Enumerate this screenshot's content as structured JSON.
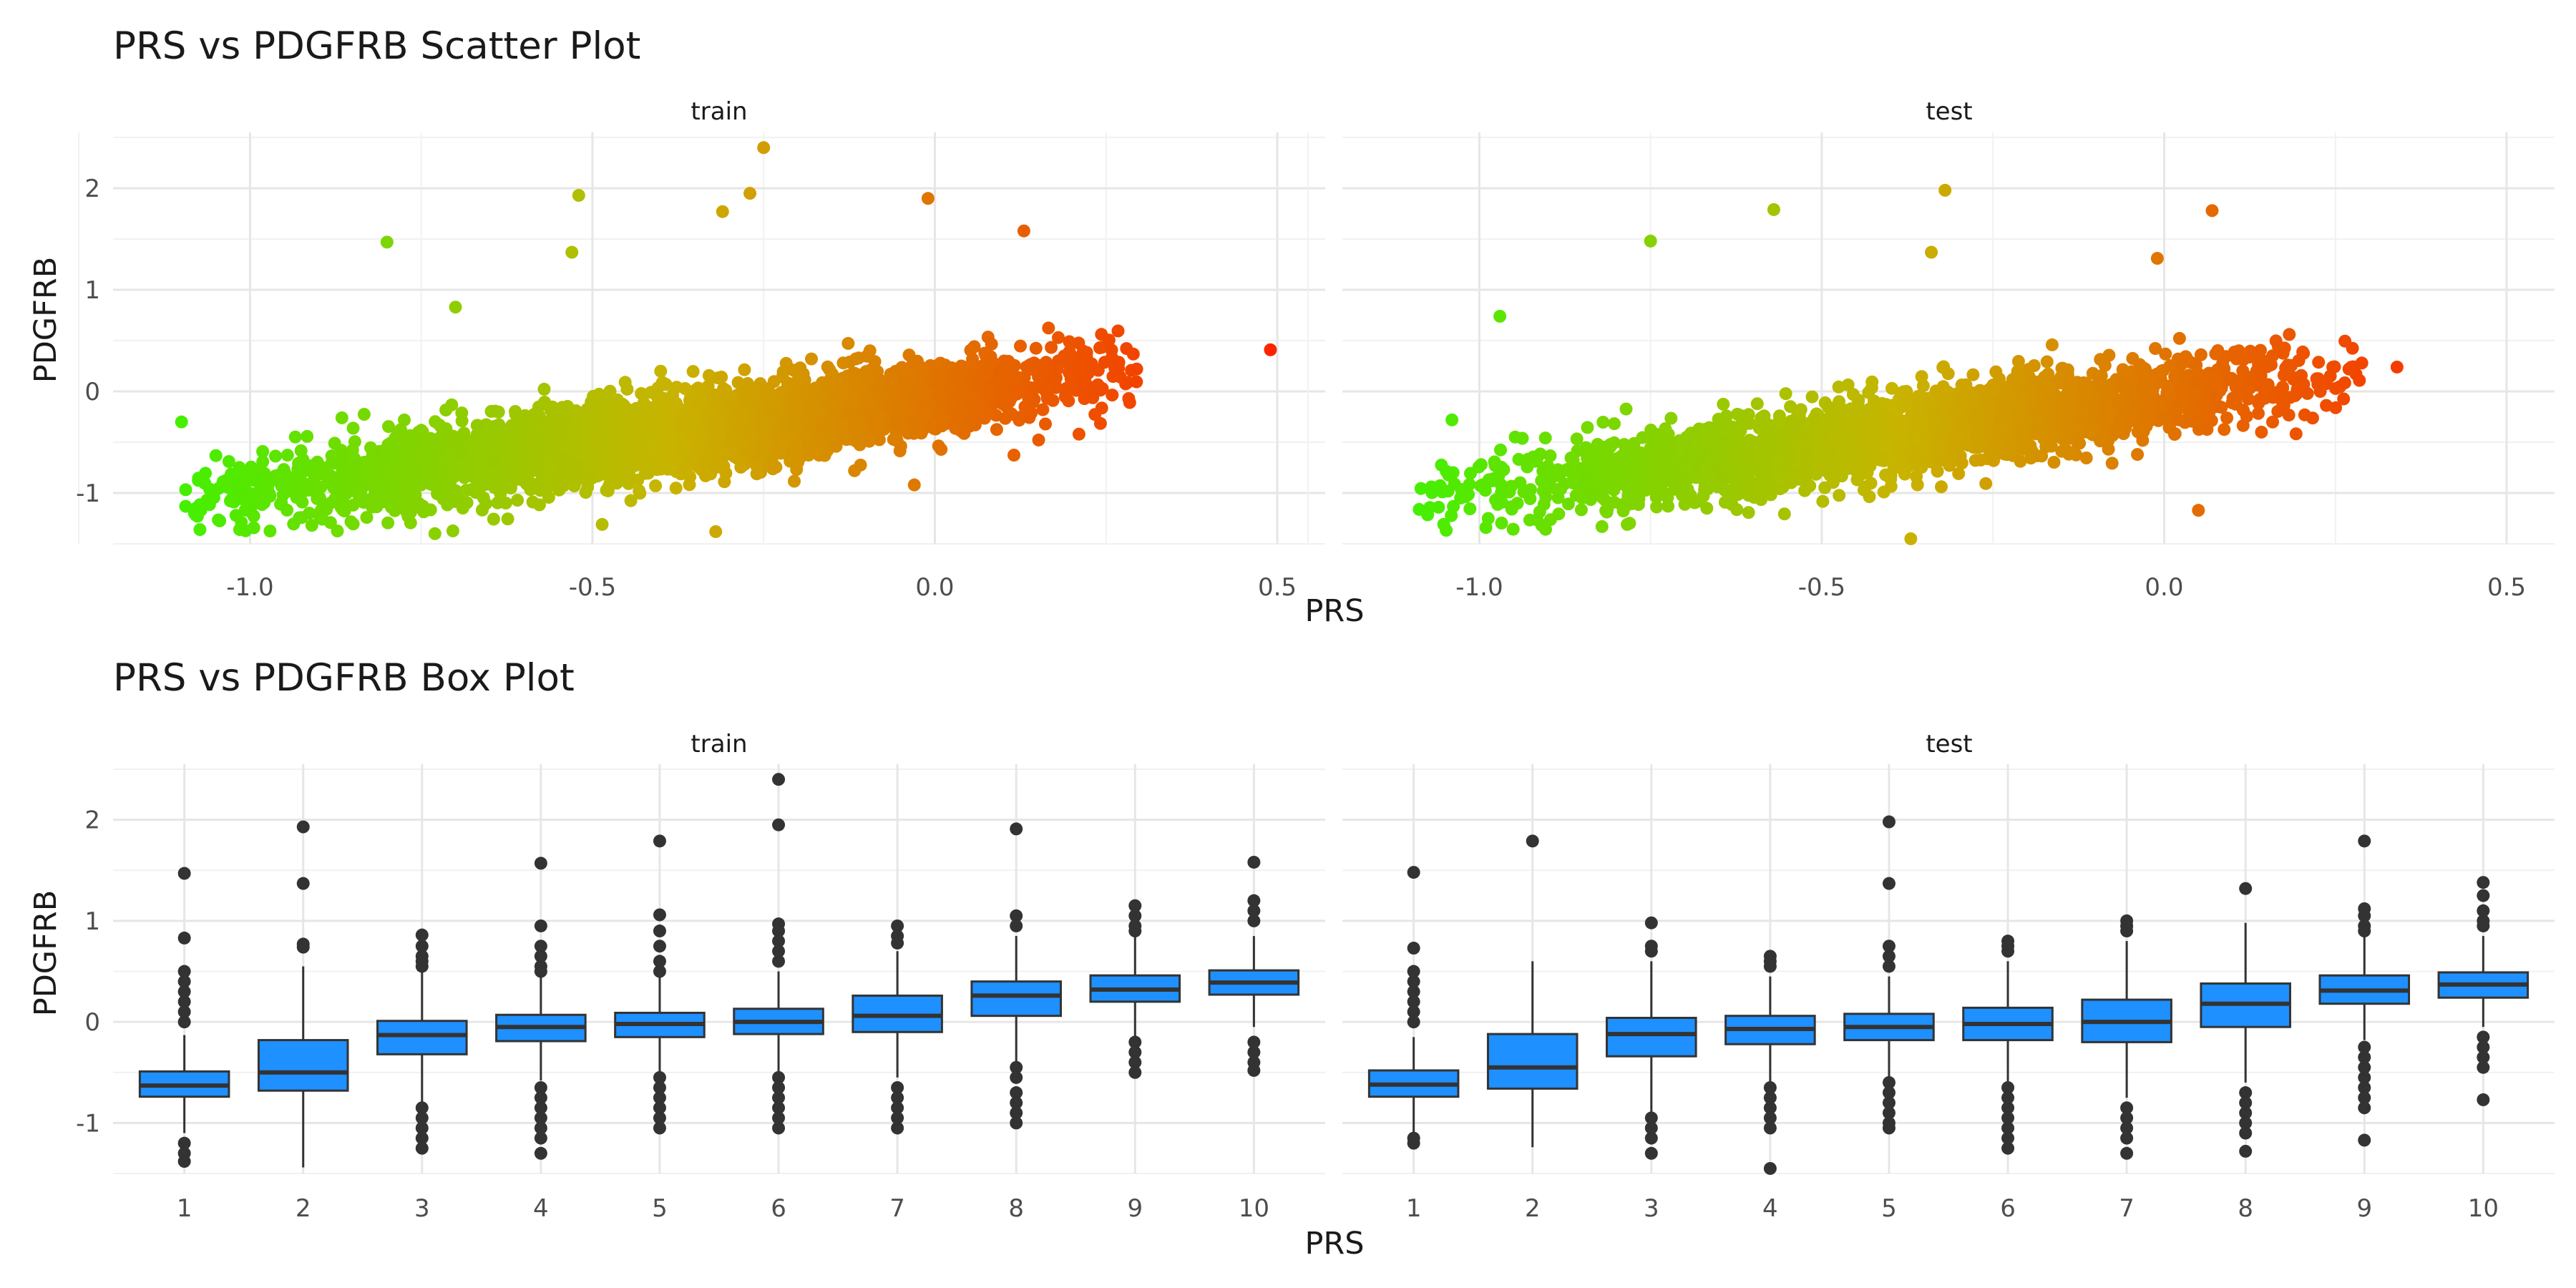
{
  "chart_data": [
    {
      "type": "scatter",
      "title": "PRS vs PDGFRB Scatter Plot",
      "xlabel": "PRS",
      "ylabel": "PDGFRB",
      "facets": [
        "train",
        "test"
      ],
      "xlim": [
        -1.2,
        0.57
      ],
      "ylim": [
        -1.5,
        2.55
      ],
      "xticks": [
        "-1.0",
        "-0.5",
        "0.0",
        "0.5"
      ],
      "yticks": [
        "-1",
        "0",
        "1",
        "2"
      ],
      "color_scale": {
        "low": "#22ff00",
        "mid": "#c8b400",
        "high": "#ff2200",
        "variable": "PRS"
      },
      "grid": true,
      "trend": {
        "slope": 0.93,
        "intercept": -0.05
      },
      "notable_points": {
        "train": [
          {
            "x": -0.25,
            "y": 2.4
          },
          {
            "x": -0.52,
            "y": 1.93
          },
          {
            "x": -0.27,
            "y": 1.95
          },
          {
            "x": -0.31,
            "y": 1.77
          },
          {
            "x": -0.53,
            "y": 1.37
          },
          {
            "x": -0.8,
            "y": 1.47
          },
          {
            "x": -0.01,
            "y": 1.9
          },
          {
            "x": 0.13,
            "y": 1.58
          },
          {
            "x": 0.49,
            "y": 0.41
          },
          {
            "x": -0.7,
            "y": 0.83
          },
          {
            "x": -1.1,
            "y": -0.3
          },
          {
            "x": -0.73,
            "y": -1.4
          },
          {
            "x": -0.32,
            "y": -1.38
          },
          {
            "x": -0.03,
            "y": -0.92
          }
        ],
        "test": [
          {
            "x": -0.32,
            "y": 1.98
          },
          {
            "x": -0.34,
            "y": 1.37
          },
          {
            "x": -0.57,
            "y": 1.79
          },
          {
            "x": -0.75,
            "y": 1.48
          },
          {
            "x": -0.97,
            "y": 0.74
          },
          {
            "x": 0.07,
            "y": 1.78
          },
          {
            "x": -0.01,
            "y": 1.31
          },
          {
            "x": 0.34,
            "y": 0.24
          },
          {
            "x": -1.07,
            "y": -0.94
          },
          {
            "x": -1.04,
            "y": -0.28
          },
          {
            "x": -0.37,
            "y": -1.45
          },
          {
            "x": 0.05,
            "y": -1.17
          }
        ]
      }
    },
    {
      "type": "box",
      "title": "PRS vs PDGFRB Box Plot",
      "xlabel": "PRS",
      "ylabel": "PDGFRB",
      "facets": [
        "train",
        "test"
      ],
      "categories": [
        "1",
        "2",
        "3",
        "4",
        "5",
        "6",
        "7",
        "8",
        "9",
        "10"
      ],
      "yticks": [
        "-1",
        "0",
        "1",
        "2"
      ],
      "ylim": [
        -1.5,
        2.55
      ],
      "box_color": "#1e90ff",
      "panels": [
        {
          "name": "train",
          "boxes": [
            {
              "q1": -0.74,
              "median": -0.63,
              "q3": -0.49,
              "wl": -1.1,
              "wh": -0.13,
              "outliers": [
                1.47,
                0.83,
                0.5,
                0.4,
                0.3,
                0.2,
                0.1,
                0.0,
                -1.2,
                -1.3,
                -1.38
              ]
            },
            {
              "q1": -0.68,
              "median": -0.5,
              "q3": -0.18,
              "wl": -1.44,
              "wh": 0.55,
              "outliers": [
                1.93,
                1.37,
                0.77,
                0.74
              ]
            },
            {
              "q1": -0.32,
              "median": -0.13,
              "q3": 0.01,
              "wl": -0.8,
              "wh": 0.5,
              "outliers": [
                0.86,
                0.75,
                0.65,
                0.6,
                0.55,
                -0.85,
                -0.95,
                -1.05,
                -1.15,
                -1.25
              ]
            },
            {
              "q1": -0.19,
              "median": -0.05,
              "q3": 0.07,
              "wl": -0.58,
              "wh": 0.45,
              "outliers": [
                1.57,
                0.95,
                0.75,
                0.65,
                0.55,
                0.5,
                -0.65,
                -0.75,
                -0.85,
                -0.95,
                -1.05,
                -1.15,
                -1.3
              ]
            },
            {
              "q1": -0.15,
              "median": -0.02,
              "q3": 0.09,
              "wl": -0.5,
              "wh": 0.45,
              "outliers": [
                1.79,
                1.06,
                0.9,
                0.75,
                0.6,
                0.5,
                -0.55,
                -0.65,
                -0.75,
                -0.85,
                -0.95,
                -1.05
              ]
            },
            {
              "q1": -0.12,
              "median": 0.0,
              "q3": 0.13,
              "wl": -0.5,
              "wh": 0.5,
              "outliers": [
                2.4,
                1.95,
                0.97,
                0.9,
                0.8,
                0.7,
                0.6,
                -0.55,
                -0.65,
                -0.75,
                -0.85,
                -0.95,
                -1.05
              ]
            },
            {
              "q1": -0.1,
              "median": 0.06,
              "q3": 0.26,
              "wl": -0.55,
              "wh": 0.7,
              "outliers": [
                0.95,
                0.85,
                0.78,
                -0.65,
                -0.75,
                -0.85,
                -0.95,
                -1.05
              ]
            },
            {
              "q1": 0.06,
              "median": 0.26,
              "q3": 0.4,
              "wl": -0.4,
              "wh": 0.85,
              "outliers": [
                1.91,
                1.05,
                0.95,
                -0.45,
                -0.55,
                -0.7,
                -0.8,
                -0.9,
                -1.0
              ]
            },
            {
              "q1": 0.2,
              "median": 0.32,
              "q3": 0.46,
              "wl": -0.15,
              "wh": 0.85,
              "outliers": [
                1.15,
                1.05,
                0.95,
                0.9,
                -0.2,
                -0.3,
                -0.4,
                -0.5
              ]
            },
            {
              "q1": 0.27,
              "median": 0.39,
              "q3": 0.51,
              "wl": -0.05,
              "wh": 0.85,
              "outliers": [
                1.58,
                1.2,
                1.1,
                1.0,
                -0.2,
                -0.3,
                -0.4,
                -0.48
              ]
            }
          ]
        },
        {
          "name": "test",
          "boxes": [
            {
              "q1": -0.74,
              "median": -0.62,
              "q3": -0.48,
              "wl": -1.1,
              "wh": -0.15,
              "outliers": [
                1.48,
                0.73,
                0.5,
                0.4,
                0.3,
                0.2,
                0.1,
                0.0,
                -1.15,
                -1.2
              ]
            },
            {
              "q1": -0.66,
              "median": -0.45,
              "q3": -0.12,
              "wl": -1.24,
              "wh": 0.6,
              "outliers": [
                1.79
              ]
            },
            {
              "q1": -0.34,
              "median": -0.12,
              "q3": 0.04,
              "wl": -0.9,
              "wh": 0.6,
              "outliers": [
                0.98,
                0.75,
                0.7,
                -0.95,
                -1.05,
                -1.15,
                -1.3
              ]
            },
            {
              "q1": -0.22,
              "median": -0.07,
              "q3": 0.06,
              "wl": -0.6,
              "wh": 0.45,
              "outliers": [
                0.65,
                0.6,
                0.55,
                -0.65,
                -0.75,
                -0.85,
                -0.95,
                -1.05,
                -1.45
              ]
            },
            {
              "q1": -0.18,
              "median": -0.05,
              "q3": 0.08,
              "wl": -0.55,
              "wh": 0.45,
              "outliers": [
                1.98,
                1.37,
                0.75,
                0.65,
                0.55,
                -0.6,
                -0.7,
                -0.8,
                -0.9,
                -1.0,
                -1.05
              ]
            },
            {
              "q1": -0.18,
              "median": -0.02,
              "q3": 0.14,
              "wl": -0.6,
              "wh": 0.6,
              "outliers": [
                0.8,
                0.75,
                0.7,
                -0.65,
                -0.75,
                -0.85,
                -0.95,
                -1.05,
                -1.15,
                -1.25
              ]
            },
            {
              "q1": -0.2,
              "median": 0.0,
              "q3": 0.22,
              "wl": -0.75,
              "wh": 0.8,
              "outliers": [
                1.0,
                0.95,
                0.9,
                -0.85,
                -0.95,
                -1.05,
                -1.15,
                -1.3
              ]
            },
            {
              "q1": -0.05,
              "median": 0.18,
              "q3": 0.38,
              "wl": -0.6,
              "wh": 0.98,
              "outliers": [
                1.32,
                -0.7,
                -0.8,
                -0.9,
                -1.0,
                -1.1,
                -1.28
              ]
            },
            {
              "q1": 0.18,
              "median": 0.31,
              "q3": 0.46,
              "wl": -0.18,
              "wh": 0.85,
              "outliers": [
                1.79,
                1.12,
                1.05,
                0.95,
                0.9,
                -0.25,
                -0.35,
                -0.45,
                -0.55,
                -0.65,
                -0.75,
                -0.85,
                -1.17
              ]
            },
            {
              "q1": 0.24,
              "median": 0.37,
              "q3": 0.49,
              "wl": -0.05,
              "wh": 0.85,
              "outliers": [
                1.38,
                1.25,
                1.1,
                1.0,
                0.95,
                -0.15,
                -0.25,
                -0.35,
                -0.45,
                -0.77
              ]
            }
          ]
        }
      ]
    }
  ]
}
